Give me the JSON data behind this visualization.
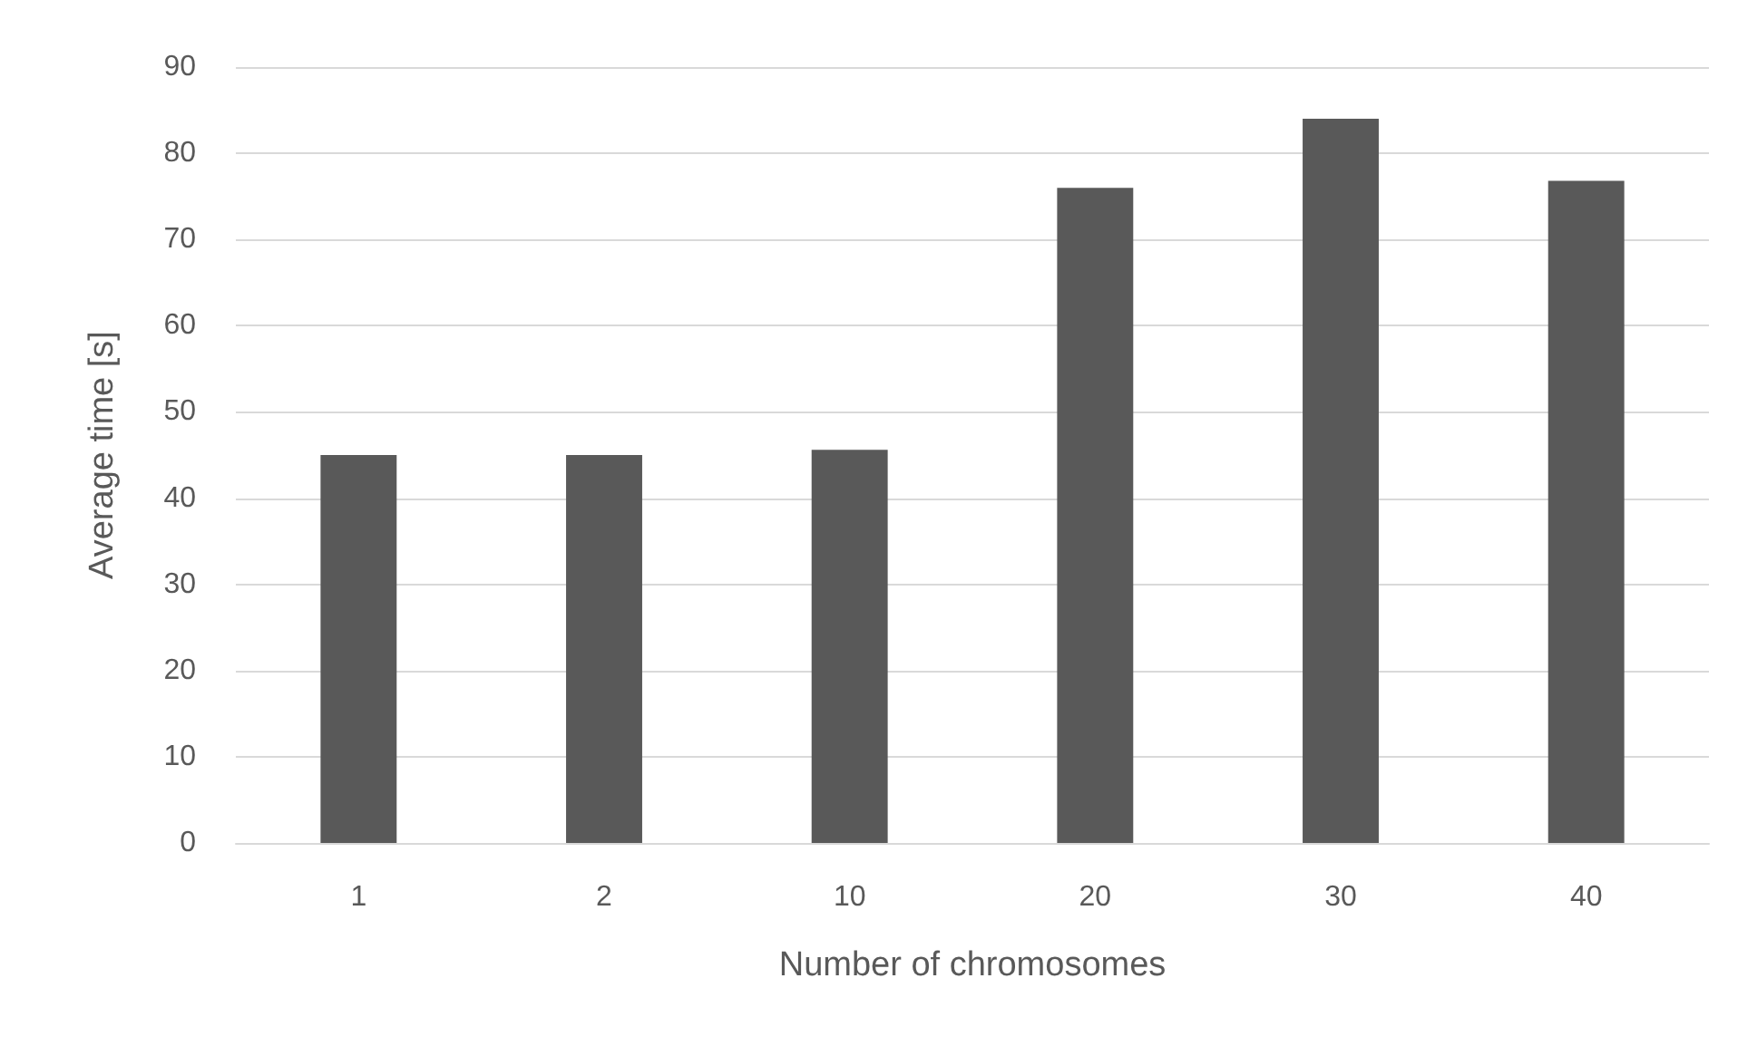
{
  "chart_data": {
    "type": "bar",
    "xlabel": "Number of chromosomes",
    "ylabel": "Average time [s]",
    "categories": [
      "1",
      "2",
      "10",
      "20",
      "30",
      "40"
    ],
    "values": [
      45,
      45,
      45.6,
      76,
      84,
      76.8
    ],
    "color": "#595959",
    "ylim": [
      0,
      90
    ],
    "yticks": [
      0,
      10,
      20,
      30,
      40,
      50,
      60,
      70,
      80,
      90
    ],
    "grid": "y"
  }
}
